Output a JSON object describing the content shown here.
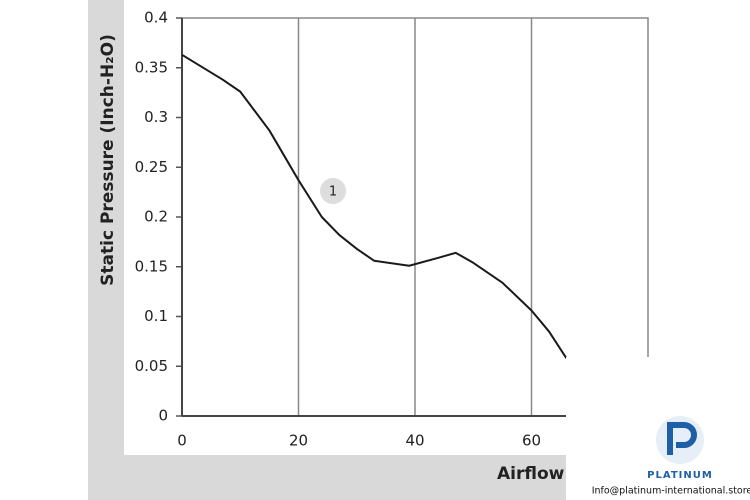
{
  "chart_data": {
    "type": "line",
    "y_label": "Static Pressure (Inch-H₂O)",
    "x_label": "Airflow",
    "annotation": "1",
    "xlim": [
      0,
      80
    ],
    "xticks": [
      0,
      20,
      40,
      60
    ],
    "ylim": [
      0,
      0.4
    ],
    "yticks": [
      0,
      0.05,
      0.1,
      0.15,
      0.2,
      0.25,
      0.3,
      0.35,
      0.4
    ],
    "grid": true,
    "series": [
      {
        "name": "1",
        "color": "#1a1a1a",
        "x": [
          0,
          7,
          10,
          15,
          20,
          24,
          27,
          30,
          33,
          39,
          44,
          47,
          50,
          55,
          60,
          63,
          66
        ],
        "values": [
          0.363,
          0.338,
          0.326,
          0.287,
          0.237,
          0.2,
          0.182,
          0.168,
          0.156,
          0.151,
          0.159,
          0.164,
          0.154,
          0.134,
          0.106,
          0.085,
          0.058
        ]
      }
    ]
  },
  "watermark": {
    "brand": "PLATINUM",
    "email": "Info@platinum-international.store"
  }
}
